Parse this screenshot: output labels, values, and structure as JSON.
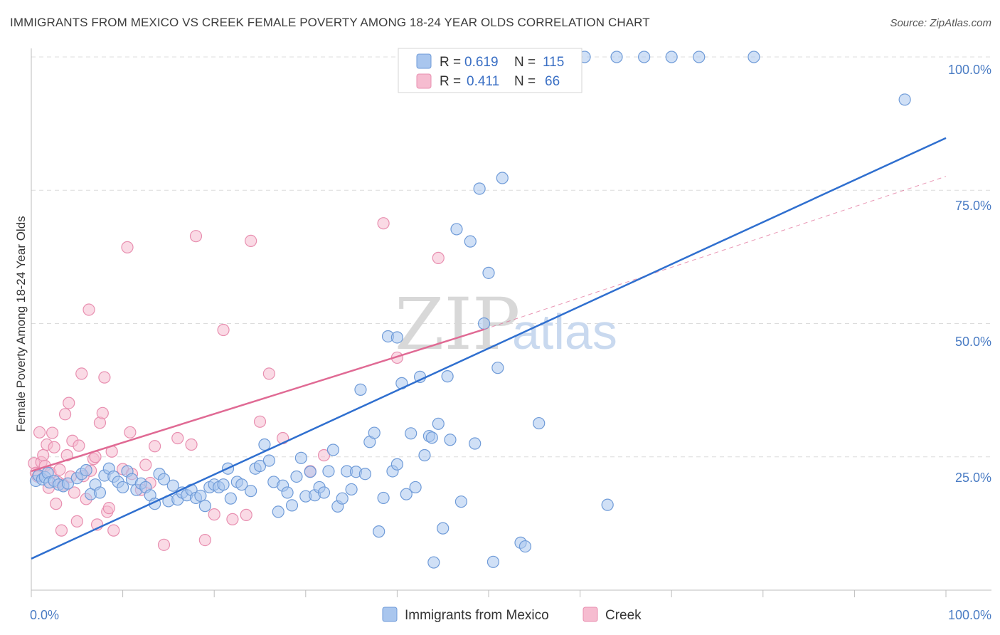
{
  "title": "IMMIGRANTS FROM MEXICO VS CREEK FEMALE POVERTY AMONG 18-24 YEAR OLDS CORRELATION CHART",
  "source": "Source: ZipAtlas.com",
  "watermark": {
    "zip": "ZIP",
    "atlas": "atlas"
  },
  "legend": {
    "r_label": "R =",
    "n_label": "N =",
    "series_a": {
      "r": "0.619",
      "n": "115"
    },
    "series_b": {
      "r": "0.411",
      "n": "66"
    }
  },
  "colors": {
    "blue_fill": "#a9c6ee",
    "blue_stroke": "#6f9bd8",
    "blue_line": "#2f6fcf",
    "pink_fill": "#f6bcd0",
    "pink_stroke": "#e88fb0",
    "pink_line": "#e06a94",
    "grid": "#dcdcdc",
    "tick_text": "#4a7cc4"
  },
  "chart_data": {
    "type": "scatter",
    "title": "IMMIGRANTS FROM MEXICO VS CREEK FEMALE POVERTY AMONG 18-24 YEAR OLDS CORRELATION CHART",
    "xlabel": "",
    "ylabel": "Female Poverty Among 18-24 Year Olds",
    "xlim": [
      0,
      100
    ],
    "ylim": [
      0,
      100
    ],
    "x_tick_labels": [
      "0.0%",
      "100.0%"
    ],
    "y_tick_labels": [
      "25.0%",
      "50.0%",
      "75.0%",
      "100.0%"
    ],
    "y_ticks": [
      25,
      50,
      75,
      100
    ],
    "grid": true,
    "legend_position": "top-center",
    "series": [
      {
        "name": "Immigrants from Mexico",
        "r": 0.619,
        "n": 115,
        "trend": {
          "x": [
            0,
            100
          ],
          "y": [
            5.9,
            84.8
          ]
        },
        "points": [
          [
            0.5,
            20.5
          ],
          [
            0.8,
            21.5
          ],
          [
            1.2,
            20.8
          ],
          [
            1.5,
            21.2
          ],
          [
            1.8,
            22.0
          ],
          [
            2.0,
            20.2
          ],
          [
            2.5,
            20.5
          ],
          [
            3.0,
            19.8
          ],
          [
            3.5,
            19.5
          ],
          [
            4.0,
            20.0
          ],
          [
            5.0,
            21.0
          ],
          [
            5.5,
            21.8
          ],
          [
            6.0,
            22.5
          ],
          [
            6.5,
            18.0
          ],
          [
            7.0,
            19.8
          ],
          [
            7.5,
            18.3
          ],
          [
            8.0,
            21.5
          ],
          [
            8.5,
            22.8
          ],
          [
            9.0,
            21.3
          ],
          [
            9.5,
            20.3
          ],
          [
            10.0,
            19.3
          ],
          [
            10.5,
            22.3
          ],
          [
            11.0,
            20.8
          ],
          [
            11.5,
            18.8
          ],
          [
            12.0,
            20.0
          ],
          [
            12.5,
            19.3
          ],
          [
            13.0,
            17.8
          ],
          [
            13.5,
            16.2
          ],
          [
            14.0,
            21.8
          ],
          [
            14.5,
            20.8
          ],
          [
            15.0,
            16.7
          ],
          [
            15.5,
            19.6
          ],
          [
            16.0,
            17.0
          ],
          [
            16.5,
            18.3
          ],
          [
            17.0,
            17.8
          ],
          [
            17.5,
            18.8
          ],
          [
            18.0,
            17.3
          ],
          [
            18.5,
            17.7
          ],
          [
            19.0,
            15.8
          ],
          [
            19.5,
            19.3
          ],
          [
            20.0,
            19.8
          ],
          [
            20.5,
            19.3
          ],
          [
            21.0,
            19.8
          ],
          [
            21.5,
            22.8
          ],
          [
            21.8,
            17.2
          ],
          [
            22.5,
            20.3
          ],
          [
            23.0,
            19.8
          ],
          [
            24.0,
            18.6
          ],
          [
            24.5,
            22.8
          ],
          [
            25.0,
            23.3
          ],
          [
            25.5,
            27.3
          ],
          [
            26.0,
            24.3
          ],
          [
            26.5,
            20.3
          ],
          [
            27.0,
            14.7
          ],
          [
            27.5,
            19.6
          ],
          [
            28.0,
            18.3
          ],
          [
            28.5,
            15.9
          ],
          [
            29.0,
            21.3
          ],
          [
            29.5,
            24.8
          ],
          [
            30.0,
            17.6
          ],
          [
            30.5,
            22.2
          ],
          [
            31.0,
            17.8
          ],
          [
            31.5,
            19.3
          ],
          [
            32.0,
            18.3
          ],
          [
            32.5,
            22.3
          ],
          [
            33.0,
            26.3
          ],
          [
            33.5,
            15.7
          ],
          [
            34.0,
            17.2
          ],
          [
            34.5,
            22.3
          ],
          [
            35.0,
            18.9
          ],
          [
            35.5,
            22.2
          ],
          [
            36.0,
            37.6
          ],
          [
            36.5,
            21.8
          ],
          [
            37.0,
            27.8
          ],
          [
            37.5,
            29.5
          ],
          [
            38.0,
            11.0
          ],
          [
            38.5,
            17.3
          ],
          [
            39.0,
            47.6
          ],
          [
            39.5,
            22.3
          ],
          [
            40.0,
            23.6
          ],
          [
            40.5,
            38.8
          ],
          [
            41.0,
            18.0
          ],
          [
            41.5,
            29.4
          ],
          [
            42.0,
            19.3
          ],
          [
            42.5,
            40.0
          ],
          [
            43.0,
            25.3
          ],
          [
            43.5,
            28.9
          ],
          [
            44.0,
            5.2
          ],
          [
            44.5,
            31.2
          ],
          [
            45.0,
            11.6
          ],
          [
            45.5,
            40.1
          ],
          [
            45.8,
            28.2
          ],
          [
            46.5,
            67.7
          ],
          [
            47.0,
            16.6
          ],
          [
            48.0,
            65.4
          ],
          [
            48.5,
            27.5
          ],
          [
            49.0,
            75.3
          ],
          [
            49.5,
            50.0
          ],
          [
            50.0,
            59.5
          ],
          [
            50.5,
            5.3
          ],
          [
            51.0,
            41.7
          ],
          [
            51.5,
            77.3
          ],
          [
            53.0,
            100.0
          ],
          [
            54.0,
            100.0
          ],
          [
            55.0,
            100.0
          ],
          [
            57.0,
            100.0
          ],
          [
            58.0,
            100.0
          ],
          [
            60.5,
            100.0
          ],
          [
            64.0,
            100.0
          ],
          [
            67.0,
            100.0
          ],
          [
            70.0,
            100.0
          ],
          [
            73.0,
            100.0
          ],
          [
            79.0,
            100.0
          ],
          [
            53.5,
            8.9
          ],
          [
            54.0,
            8.2
          ],
          [
            55.5,
            31.3
          ],
          [
            63.0,
            16.0
          ],
          [
            95.5,
            92.0
          ],
          [
            40.0,
            47.4
          ],
          [
            43.8,
            28.6
          ]
        ]
      },
      {
        "name": "Creek",
        "r": 0.411,
        "n": 66,
        "trend": {
          "x": [
            0,
            49.5
          ],
          "y": [
            22.3,
            48.9
          ]
        },
        "trend_dashed": {
          "x": [
            49.5,
            100
          ],
          "y": [
            48.9,
            77.6
          ]
        },
        "points": [
          [
            0.3,
            23.8
          ],
          [
            0.5,
            22.0
          ],
          [
            0.7,
            21.3
          ],
          [
            0.9,
            29.6
          ],
          [
            1.1,
            24.0
          ],
          [
            1.3,
            25.3
          ],
          [
            1.5,
            23.3
          ],
          [
            1.7,
            27.3
          ],
          [
            1.9,
            19.2
          ],
          [
            2.1,
            22.0
          ],
          [
            2.3,
            29.5
          ],
          [
            2.5,
            26.8
          ],
          [
            2.7,
            16.2
          ],
          [
            2.9,
            20.3
          ],
          [
            3.1,
            22.6
          ],
          [
            3.3,
            11.2
          ],
          [
            3.5,
            19.8
          ],
          [
            3.7,
            33.0
          ],
          [
            3.9,
            25.3
          ],
          [
            4.1,
            35.1
          ],
          [
            4.3,
            21.3
          ],
          [
            4.5,
            28.0
          ],
          [
            4.7,
            18.3
          ],
          [
            5.0,
            12.9
          ],
          [
            5.2,
            27.1
          ],
          [
            5.5,
            40.6
          ],
          [
            5.7,
            21.4
          ],
          [
            6.0,
            17.1
          ],
          [
            6.3,
            52.6
          ],
          [
            6.5,
            22.4
          ],
          [
            6.8,
            24.6
          ],
          [
            7.0,
            25.0
          ],
          [
            7.2,
            12.3
          ],
          [
            7.5,
            31.4
          ],
          [
            7.8,
            33.2
          ],
          [
            8.0,
            39.9
          ],
          [
            8.3,
            14.7
          ],
          [
            8.5,
            15.4
          ],
          [
            8.8,
            26.0
          ],
          [
            9.0,
            11.2
          ],
          [
            10.0,
            22.7
          ],
          [
            10.5,
            64.3
          ],
          [
            10.8,
            29.6
          ],
          [
            11.0,
            21.8
          ],
          [
            12.0,
            18.8
          ],
          [
            12.5,
            23.5
          ],
          [
            13.0,
            20.1
          ],
          [
            13.5,
            27.0
          ],
          [
            14.5,
            8.5
          ],
          [
            16.0,
            28.5
          ],
          [
            17.5,
            27.3
          ],
          [
            18.0,
            66.4
          ],
          [
            19.0,
            9.4
          ],
          [
            20.0,
            14.2
          ],
          [
            21.0,
            48.8
          ],
          [
            22.0,
            13.3
          ],
          [
            23.5,
            14.1
          ],
          [
            24.0,
            65.5
          ],
          [
            25.0,
            31.6
          ],
          [
            26.0,
            40.6
          ],
          [
            27.5,
            28.5
          ],
          [
            30.5,
            22.3
          ],
          [
            32.0,
            25.3
          ],
          [
            38.5,
            68.8
          ],
          [
            40.0,
            43.6
          ],
          [
            44.5,
            62.3
          ]
        ]
      }
    ]
  },
  "bottom_legend": {
    "series_a_label": "Immigrants from Mexico",
    "series_b_label": "Creek"
  }
}
